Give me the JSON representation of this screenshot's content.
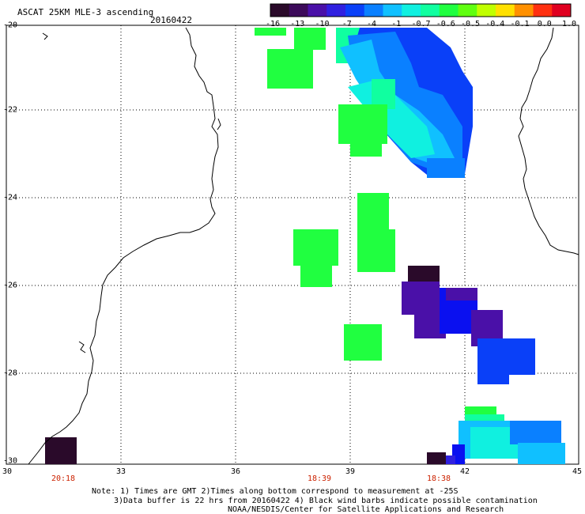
{
  "title": "ASCAT 25KM MLE-3 ascending",
  "date": "20160422",
  "colorbar": {
    "labels": [
      "-16",
      "-13",
      "-10",
      "-7",
      "-4",
      "-1",
      "-0.7",
      "-0.6",
      "-0.5",
      "-0.4",
      "-0.1",
      "0.0",
      "1.0"
    ],
    "colors": [
      "#2a0a2a",
      "#3c0a5a",
      "#4a10a8",
      "#3020e0",
      "#0a40f8",
      "#0a80ff",
      "#10c0ff",
      "#10f0e0",
      "#10ffa0",
      "#20ff40",
      "#60ff10",
      "#c0ff00",
      "#ffe000",
      "#ff9000",
      "#ff3010",
      "#e00020"
    ]
  },
  "axes": {
    "lat_labels": [
      "-20",
      "-22",
      "-24",
      "-26",
      "-28",
      "-30"
    ],
    "lon_labels": [
      "30",
      "33",
      "36",
      "39",
      "42",
      "45"
    ]
  },
  "pass_times": [
    "20:18",
    "18:39",
    "18:38"
  ],
  "notes": {
    "line1": "Note: 1) Times are GMT 2)Times along bottom correspond to measurement at -25S",
    "line2": "3)Data buffer is 22 hrs from 20160422 4) Black wind barbs indicate possible contamination",
    "line3": "NOAA/NESDIS/Center for Satellite Applications and Research"
  }
}
